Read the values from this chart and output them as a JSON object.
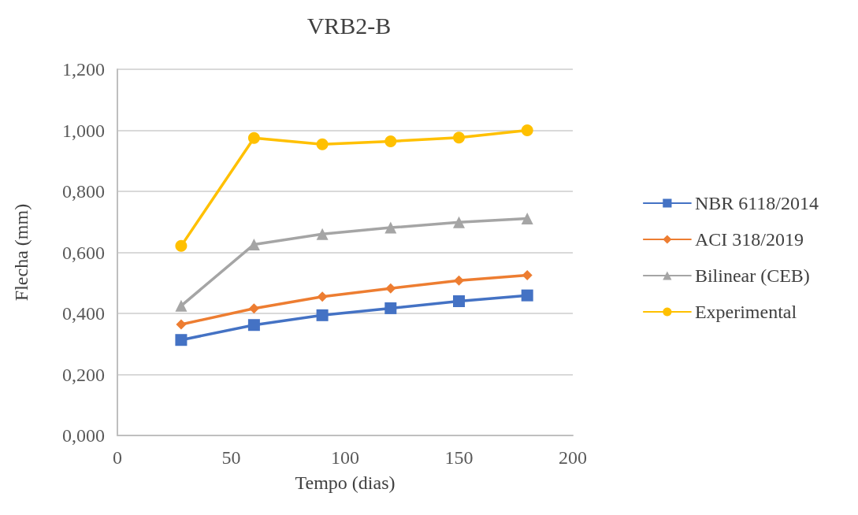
{
  "chart_data": {
    "type": "line",
    "title": "VRB2-B",
    "xlabel": "Tempo (dias)",
    "ylabel": "Flecha (mm)",
    "x": [
      28,
      60,
      90,
      120,
      150,
      180
    ],
    "series": [
      {
        "name": "NBR 6118/2014",
        "color": "#4472c4",
        "marker": "square",
        "values": [
          0.313,
          0.362,
          0.394,
          0.417,
          0.44,
          0.459
        ]
      },
      {
        "name": "ACI 318/2019",
        "color": "#ed7d31",
        "marker": "diamond",
        "values": [
          0.364,
          0.416,
          0.455,
          0.482,
          0.508,
          0.525
        ]
      },
      {
        "name": "Bilinear (CEB)",
        "color": "#a5a5a5",
        "marker": "triangle",
        "values": [
          0.425,
          0.626,
          0.66,
          0.681,
          0.699,
          0.711
        ]
      },
      {
        "name": "Experimental",
        "color": "#ffc000",
        "marker": "circle",
        "values": [
          0.621,
          0.975,
          0.954,
          0.964,
          0.976,
          1.0
        ]
      }
    ],
    "xlim": [
      0,
      200
    ],
    "xticks": [
      0,
      50,
      100,
      150,
      200
    ],
    "ylim": [
      0,
      1.2
    ],
    "yticks": [
      {
        "value": 0,
        "label": "0,000"
      },
      {
        "value": 0.2,
        "label": "0,200"
      },
      {
        "value": 0.4,
        "label": "0,400"
      },
      {
        "value": 0.6,
        "label": "0,600"
      },
      {
        "value": 0.8,
        "label": "0,800"
      },
      {
        "value": 1.0,
        "label": "1,000"
      },
      {
        "value": 1.2,
        "label": "1,200"
      }
    ],
    "grid": "y",
    "legend": "right",
    "line_style": "solid"
  }
}
